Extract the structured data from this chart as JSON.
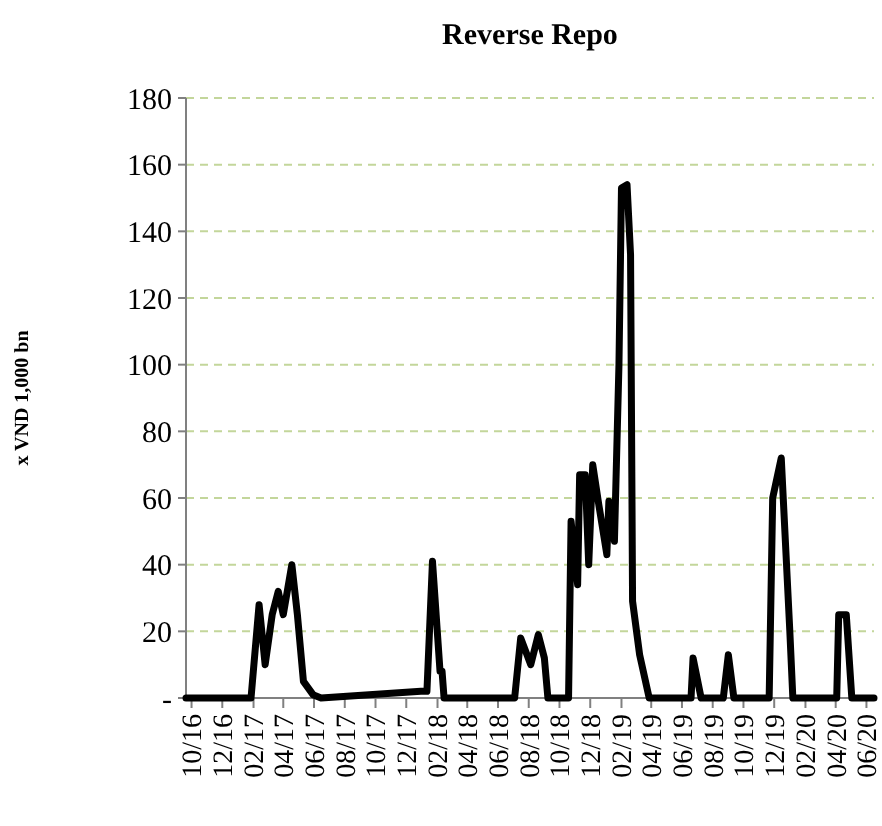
{
  "chart_data": {
    "type": "line",
    "title": "Reverse Repo",
    "ylabel": "x VND 1,000 bn",
    "x": [
      "2016-09-20",
      "2017-01-27",
      "2017-02-12",
      "2017-02-24",
      "2017-03-10",
      "2017-03-22",
      "2017-04-01",
      "2017-04-18",
      "2017-04-29",
      "2017-05-11",
      "2017-05-30",
      "2017-06-15",
      "2017-12-30",
      "2018-01-11",
      "2018-01-22",
      "2018-02-06",
      "2018-02-10",
      "2018-02-14",
      "2018-07-04",
      "2018-07-16",
      "2018-08-05",
      "2018-08-20",
      "2018-09-01",
      "2018-09-08",
      "2018-10-19",
      "2018-10-24",
      "2018-11-06",
      "2018-11-10",
      "2018-11-21",
      "2018-11-28",
      "2018-12-06",
      "2018-12-18",
      "2019-01-03",
      "2019-01-07",
      "2019-01-18",
      "2019-01-27",
      "2019-02-01",
      "2019-02-12",
      "2019-02-19",
      "2019-02-23",
      "2019-03-09",
      "2019-03-28",
      "2019-05-03",
      "2019-06-19",
      "2019-06-23",
      "2019-07-09",
      "2019-08-22",
      "2019-09-01",
      "2019-09-12",
      "2019-11-21",
      "2019-11-28",
      "2019-12-15",
      "2020-01-01",
      "2020-01-07",
      "2020-04-03",
      "2020-04-07",
      "2020-04-22",
      "2020-05-03",
      "2020-06-16"
    ],
    "series": [
      {
        "color": "#000000",
        "values": [
          0,
          0,
          28,
          10,
          25,
          32,
          25,
          40,
          25,
          5,
          1,
          0,
          2,
          2,
          41,
          8,
          8,
          0,
          0,
          18,
          10,
          19,
          12,
          0,
          0,
          53,
          34,
          67,
          67,
          40,
          70,
          58,
          43,
          59,
          47,
          100,
          153,
          154,
          133,
          29,
          13,
          0,
          0,
          0,
          12,
          0,
          0,
          13,
          0,
          0,
          60,
          72,
          20,
          0,
          0,
          25,
          25,
          0,
          0
        ]
      }
    ],
    "xlim": [
      "2016-09-20",
      "2020-06-16"
    ],
    "xticks": [
      {
        "value": "2016-10-01",
        "label": "10/16"
      },
      {
        "value": "2016-12-01",
        "label": "12/16"
      },
      {
        "value": "2017-02-01",
        "label": "02/17"
      },
      {
        "value": "2017-04-01",
        "label": "04/17"
      },
      {
        "value": "2017-06-01",
        "label": "06/17"
      },
      {
        "value": "2017-08-01",
        "label": "08/17"
      },
      {
        "value": "2017-10-01",
        "label": "10/17"
      },
      {
        "value": "2017-12-01",
        "label": "12/17"
      },
      {
        "value": "2018-02-01",
        "label": "02/18"
      },
      {
        "value": "2018-04-01",
        "label": "04/18"
      },
      {
        "value": "2018-06-01",
        "label": "06/18"
      },
      {
        "value": "2018-08-01",
        "label": "08/18"
      },
      {
        "value": "2018-10-01",
        "label": "10/18"
      },
      {
        "value": "2018-12-01",
        "label": "12/18"
      },
      {
        "value": "2019-02-01",
        "label": "02/19"
      },
      {
        "value": "2019-04-01",
        "label": "04/19"
      },
      {
        "value": "2019-06-01",
        "label": "06/19"
      },
      {
        "value": "2019-08-01",
        "label": "08/19"
      },
      {
        "value": "2019-10-01",
        "label": "10/19"
      },
      {
        "value": "2019-12-01",
        "label": "12/19"
      },
      {
        "value": "2020-02-01",
        "label": "02/20"
      },
      {
        "value": "2020-04-01",
        "label": "04/20"
      },
      {
        "value": "2020-06-01",
        "label": "06/20"
      }
    ],
    "ylim": [
      0,
      180
    ],
    "yticks": [
      {
        "value": 0,
        "label": "-"
      },
      20,
      40,
      60,
      80,
      100,
      120,
      140,
      160,
      180
    ],
    "grid": "y",
    "line_style": "solid"
  }
}
